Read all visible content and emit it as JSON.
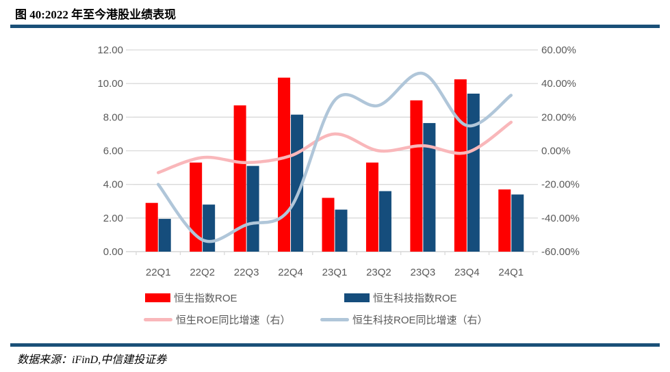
{
  "header": {
    "title": "图 40:2022 年至今港股业绩表现"
  },
  "footer": {
    "source": "数据来源：iFinD,中信建投证券"
  },
  "colors": {
    "grid": "#D9D9D9",
    "axis_text": "#595959",
    "rule": "#1A5078"
  },
  "chart_data": {
    "type": "bar",
    "subtype": "grouped-bars-with-smooth-lines",
    "title": "图 40:2022 年至今港股业绩表现",
    "categories": [
      "22Q1",
      "22Q2",
      "22Q3",
      "22Q4",
      "23Q1",
      "23Q2",
      "23Q3",
      "23Q4",
      "24Q1"
    ],
    "series": [
      {
        "name": "恒生指数ROE",
        "type": "bar",
        "axis": "left",
        "color": "#FE0000",
        "values": [
          2.9,
          5.3,
          8.7,
          10.35,
          3.2,
          5.3,
          9.0,
          10.25,
          3.7
        ]
      },
      {
        "name": "恒生科技指数ROE",
        "type": "bar",
        "axis": "left",
        "color": "#154D7C",
        "values": [
          1.95,
          2.8,
          5.1,
          8.15,
          2.5,
          3.6,
          7.65,
          9.4,
          3.4
        ]
      },
      {
        "name": "恒生ROE同比增速（右）",
        "type": "line",
        "axis": "right",
        "color": "#F9B7BA",
        "values": [
          -13,
          -4,
          -7,
          -3,
          10,
          0,
          3,
          -1,
          17
        ]
      },
      {
        "name": "恒生科技ROE同比增速（右）",
        "type": "line",
        "axis": "right",
        "color": "#B0C6D9",
        "values": [
          -20,
          -53,
          -44,
          -34,
          30,
          27,
          46,
          15,
          33
        ]
      }
    ],
    "left_axis": {
      "min": 0,
      "max": 12,
      "tick_values": [
        0,
        2,
        4,
        6,
        8,
        10,
        12
      ],
      "tick_labels": [
        "0.00",
        "2.00",
        "4.00",
        "6.00",
        "8.00",
        "10.00",
        "12.00"
      ]
    },
    "right_axis": {
      "min": -60,
      "max": 60,
      "tick_values": [
        -60,
        -40,
        -20,
        0,
        20,
        40,
        60
      ],
      "tick_labels": [
        "-60.00%",
        "-40.00%",
        "-20.00%",
        "0.00%",
        "20.00%",
        "40.00%",
        "60.00%"
      ],
      "unit": "%"
    },
    "grid": true,
    "legend_position": "bottom",
    "xlabel": "",
    "ylabel": ""
  }
}
